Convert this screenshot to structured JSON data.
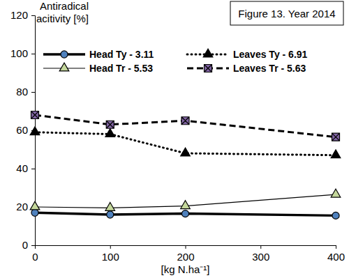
{
  "chart_data": {
    "type": "line",
    "title": "Figure 13. Year 2014",
    "y_label": "Antiradical acitivity [%]",
    "x_label": "[kg N.ha⁻¹]",
    "x": [
      0,
      100,
      200,
      400
    ],
    "xlim": [
      0,
      400
    ],
    "xticks": [
      0,
      100,
      200,
      300,
      400
    ],
    "ylim": [
      0,
      120
    ],
    "yticks": [
      0,
      20,
      40,
      60,
      80,
      100,
      120
    ],
    "grid": false,
    "legend": "top",
    "series": [
      {
        "name": "Head Ty - 3.11",
        "color": "#4f81bd",
        "marker": "circle",
        "line_style": "solid",
        "values": [
          17,
          16,
          16.5,
          15.5
        ]
      },
      {
        "name": "Leaves Ty - 6.91",
        "color": "#000000",
        "marker": "triangle",
        "line_style": "dotted",
        "values": [
          59,
          58,
          48,
          47
        ]
      },
      {
        "name": "Head Tr - 5.53",
        "color": "#c4d79b",
        "marker": "triangle",
        "line_style": "solid",
        "values": [
          20,
          19.5,
          20.5,
          26.5
        ]
      },
      {
        "name": "Leaves Tr - 5.63",
        "color": "#8064a2",
        "marker": "square",
        "line_style": "dashed",
        "values": [
          68,
          63,
          65,
          56.5
        ]
      }
    ]
  }
}
